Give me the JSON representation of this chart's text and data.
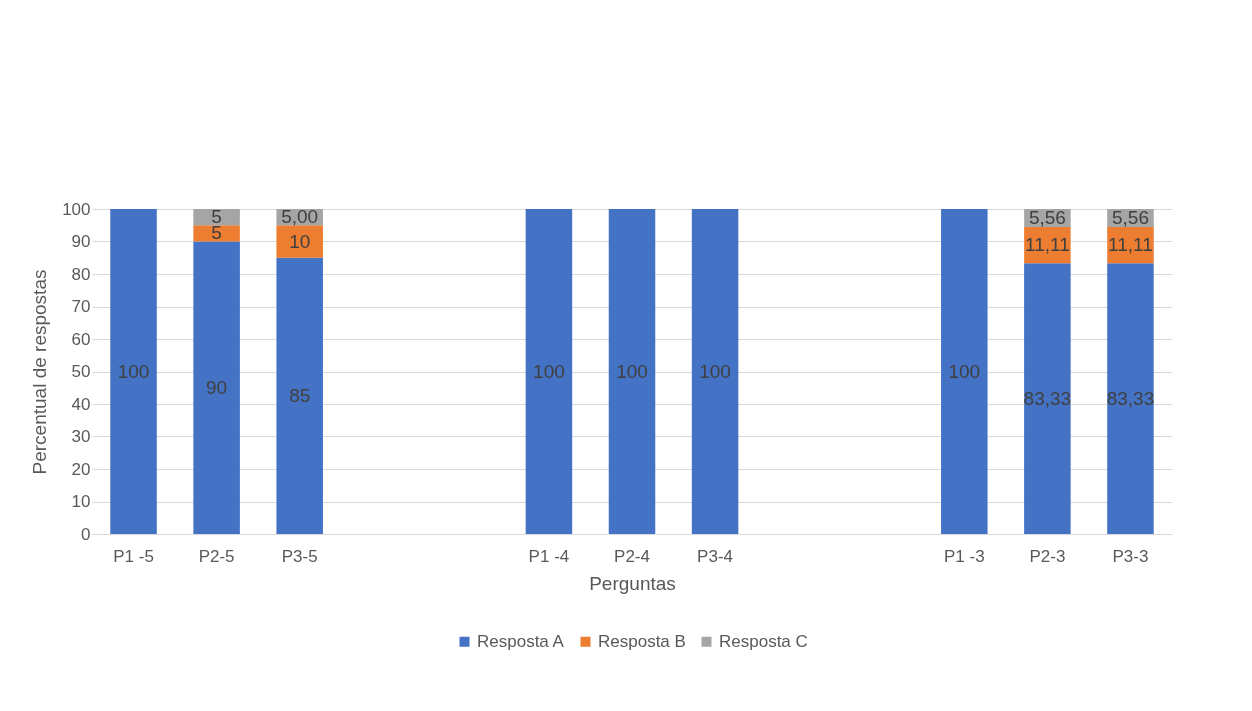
{
  "chart_data": {
    "type": "bar",
    "stacked": true,
    "xlabel": "Perguntas",
    "ylabel": "Percentual de respostas",
    "categories": [
      "P1 -5",
      "P2-5",
      "P3-5",
      null,
      null,
      "P1 -4",
      "P2-4",
      "P3-4",
      null,
      null,
      "P1 -3",
      "P2-3",
      "P3-3"
    ],
    "series": [
      {
        "name": "Resposta A",
        "color": "#4472c4",
        "values": [
          100,
          90,
          85,
          null,
          null,
          100,
          100,
          100,
          null,
          null,
          100,
          83.33,
          83.33
        ],
        "value_labels": [
          "100",
          "90",
          "85",
          null,
          null,
          "100",
          "100",
          "100",
          null,
          null,
          "100",
          "83,33",
          "83,33"
        ]
      },
      {
        "name": "Resposta B",
        "color": "#ed7d31",
        "values": [
          null,
          5,
          10,
          null,
          null,
          null,
          null,
          null,
          null,
          null,
          null,
          11.11,
          11.11
        ],
        "value_labels": [
          null,
          "5",
          "10",
          null,
          null,
          null,
          null,
          null,
          null,
          null,
          null,
          "11,11",
          "11,11"
        ]
      },
      {
        "name": "Resposta C",
        "color": "#a5a5a5",
        "values": [
          null,
          5,
          5,
          null,
          null,
          null,
          null,
          null,
          null,
          null,
          null,
          5.56,
          5.56
        ],
        "value_labels": [
          null,
          "5",
          "5,00",
          null,
          null,
          null,
          null,
          null,
          null,
          null,
          null,
          "5,56",
          "5,56"
        ]
      }
    ],
    "ylim": [
      0,
      100
    ],
    "yticks": [
      0,
      10,
      20,
      30,
      40,
      50,
      60,
      70,
      80,
      90,
      100
    ],
    "grid": "y",
    "legend": "bottom"
  }
}
